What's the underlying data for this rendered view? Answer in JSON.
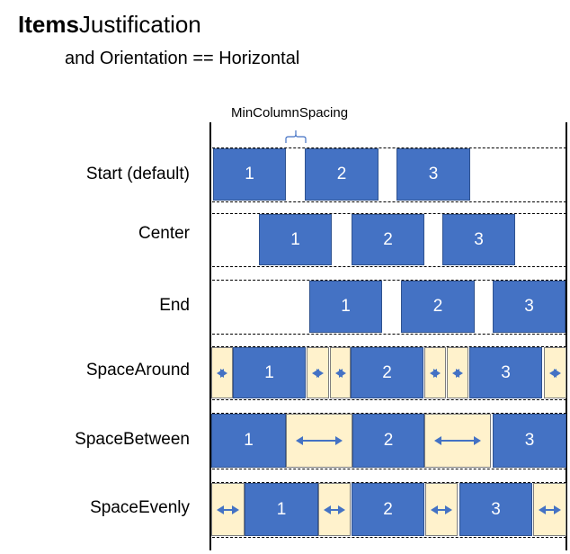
{
  "title": {
    "bold": "Items",
    "rest": "Justification"
  },
  "subtitle": "and Orientation == Horizontal",
  "annotation": "MinColumnSpacing",
  "colors": {
    "item": "#4472c4",
    "spacer": "#fff2cc",
    "arrow": "#4472c4"
  },
  "rows": [
    {
      "label": "Start (default)"
    },
    {
      "label": "Center"
    },
    {
      "label": "End"
    },
    {
      "label": "SpaceAround"
    },
    {
      "label": "SpaceBetween"
    },
    {
      "label": "SpaceEvenly"
    }
  ],
  "items": [
    "1",
    "2",
    "3"
  ]
}
